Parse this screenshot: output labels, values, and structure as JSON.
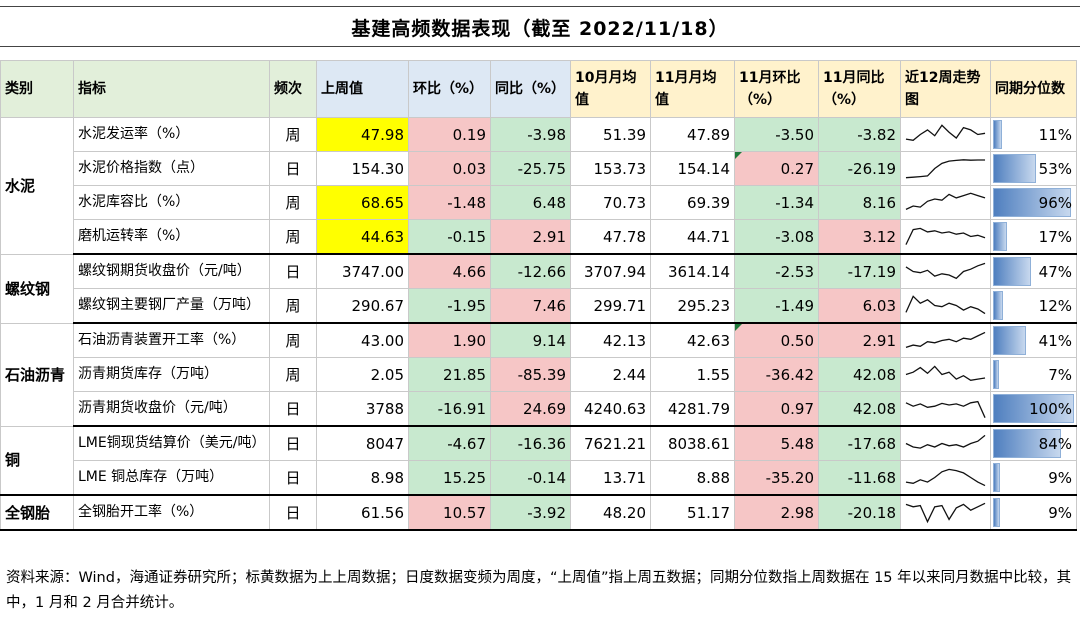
{
  "title": "基建高频数据表现（截至 2022/11/18）",
  "headers": [
    "类别",
    "指标",
    "频次",
    "上周值",
    "环比（%）",
    "同比（%）",
    "10月月均值",
    "11月月均值",
    "11月环比（%）",
    "11月同比（%）",
    "近12周走势图",
    "同期分位数"
  ],
  "rows": [
    {
      "cat": "水泥",
      "ind": "水泥发运率（%）",
      "freq": "周",
      "last": "47.98",
      "mom": "0.19",
      "yoy": "-3.98",
      "oct": "51.39",
      "nov": "47.89",
      "nmom": "-3.50",
      "nyoy": "-3.82",
      "pct": "11%",
      "pct_value": 0.11,
      "spark": [
        0.3,
        0.25,
        0.5,
        0.7,
        0.45,
        0.9,
        0.6,
        0.35,
        0.8,
        0.7,
        0.5,
        0.55
      ]
    },
    {
      "cat": "",
      "ind": "水泥价格指数（点）",
      "freq": "日",
      "last": "154.30",
      "mom": "0.03",
      "yoy": "-25.75",
      "oct": "153.73",
      "nov": "154.14",
      "nmom": "0.27",
      "nyoy": "-26.19",
      "pct": "53%",
      "pct_value": 0.53,
      "spark": [
        0.1,
        0.12,
        0.15,
        0.18,
        0.5,
        0.72,
        0.82,
        0.85,
        0.88,
        0.86,
        0.87,
        0.87
      ]
    },
    {
      "cat": "",
      "ind": "水泥库容比（%）",
      "freq": "周",
      "last": "68.65",
      "mom": "-1.48",
      "yoy": "6.48",
      "oct": "70.73",
      "nov": "69.39",
      "nmom": "-1.34",
      "nyoy": "8.16",
      "pct": "96%",
      "pct_value": 0.96,
      "spark": [
        0.2,
        0.35,
        0.3,
        0.55,
        0.65,
        0.6,
        0.85,
        0.7,
        0.8,
        0.9,
        0.8,
        0.7
      ]
    },
    {
      "cat": "",
      "ind": "磨机运转率（%）",
      "freq": "周",
      "last": "44.63",
      "mom": "-0.15",
      "yoy": "2.91",
      "oct": "47.78",
      "nov": "44.71",
      "nmom": "-3.08",
      "nyoy": "3.12",
      "pct": "17%",
      "pct_value": 0.17,
      "spark": [
        0.15,
        0.8,
        0.85,
        0.7,
        0.75,
        0.65,
        0.7,
        0.6,
        0.65,
        0.5,
        0.55,
        0.45
      ]
    },
    {
      "cat": "螺纹钢",
      "ind": "螺纹钢期货收盘价（元/吨）",
      "freq": "日",
      "last": "3747.00",
      "mom": "4.66",
      "yoy": "-12.66",
      "oct": "3707.94",
      "nov": "3614.14",
      "nmom": "-2.53",
      "nyoy": "-17.19",
      "pct": "47%",
      "pct_value": 0.47,
      "spark": [
        0.7,
        0.5,
        0.45,
        0.55,
        0.3,
        0.4,
        0.35,
        0.2,
        0.5,
        0.6,
        0.75,
        0.85
      ]
    },
    {
      "cat": "",
      "ind": "螺纹钢主要钢厂产量（万吨）",
      "freq": "周",
      "last": "290.67",
      "mom": "-1.95",
      "yoy": "7.46",
      "oct": "299.71",
      "nov": "295.23",
      "nmom": "-1.49",
      "nyoy": "6.03",
      "pct": "12%",
      "pct_value": 0.12,
      "spark": [
        0.2,
        0.9,
        0.6,
        0.75,
        0.5,
        0.45,
        0.6,
        0.5,
        0.3,
        0.45,
        0.35,
        0.15
      ]
    },
    {
      "cat": "石油沥青",
      "ind": "石油沥青装置开工率（%）",
      "freq": "周",
      "last": "43.00",
      "mom": "1.90",
      "yoy": "9.14",
      "oct": "42.13",
      "nov": "42.63",
      "nmom": "0.50",
      "nyoy": "2.91",
      "pct": "41%",
      "pct_value": 0.41,
      "spark": [
        0.2,
        0.3,
        0.25,
        0.45,
        0.4,
        0.5,
        0.55,
        0.45,
        0.6,
        0.55,
        0.7,
        0.85
      ]
    },
    {
      "cat": "",
      "ind": "沥青期货库存（万吨）",
      "freq": "周",
      "last": "2.05",
      "mom": "21.85",
      "yoy": "-85.39",
      "oct": "2.44",
      "nov": "1.55",
      "nmom": "-36.42",
      "nyoy": "42.08",
      "pct": "7%",
      "pct_value": 0.07,
      "spark": [
        0.5,
        0.6,
        0.8,
        0.55,
        0.85,
        0.5,
        0.6,
        0.3,
        0.45,
        0.25,
        0.3,
        0.35
      ]
    },
    {
      "cat": "",
      "ind": "沥青期货收盘价（元/吨）",
      "freq": "日",
      "last": "3788",
      "mom": "-16.91",
      "yoy": "24.69",
      "oct": "4240.63",
      "nov": "4281.79",
      "nmom": "0.97",
      "nyoy": "42.08",
      "pct": "100%",
      "pct_value": 1.0,
      "spark": [
        0.75,
        0.6,
        0.7,
        0.55,
        0.6,
        0.72,
        0.65,
        0.7,
        0.6,
        0.75,
        0.8,
        0.1
      ]
    },
    {
      "cat": "铜",
      "ind": "LME铜现货结算价（美元/吨）",
      "freq": "日",
      "last": "8047",
      "mom": "-4.67",
      "yoy": "-16.36",
      "oct": "7621.21",
      "nov": "8038.61",
      "nmom": "5.48",
      "nyoy": "-17.68",
      "pct": "84%",
      "pct_value": 0.84,
      "spark": [
        0.5,
        0.35,
        0.3,
        0.45,
        0.35,
        0.5,
        0.4,
        0.45,
        0.35,
        0.5,
        0.6,
        0.85
      ]
    },
    {
      "cat": "",
      "ind": "LME 铜总库存（万吨）",
      "freq": "日",
      "last": "8.98",
      "mom": "15.25",
      "yoy": "-0.14",
      "oct": "13.71",
      "nov": "8.88",
      "nmom": "-35.20",
      "nyoy": "-11.68",
      "pct": "9%",
      "pct_value": 0.09,
      "spark": [
        0.3,
        0.25,
        0.4,
        0.3,
        0.5,
        0.75,
        0.85,
        0.8,
        0.7,
        0.5,
        0.3,
        0.15
      ]
    },
    {
      "cat": "全钢胎",
      "ind": "全钢胎开工率（%）",
      "freq": "日",
      "last": "61.56",
      "mom": "10.57",
      "yoy": "-3.92",
      "oct": "48.20",
      "nov": "51.17",
      "nmom": "2.98",
      "nyoy": "-20.18",
      "pct": "9%",
      "pct_value": 0.09,
      "spark": [
        0.85,
        0.75,
        0.8,
        0.1,
        0.75,
        0.8,
        0.2,
        0.7,
        0.85,
        0.6,
        0.75,
        0.9
      ]
    }
  ],
  "highlight_colors": {
    "yellow": "#ffff00",
    "red": "#f6c6c6",
    "green": "#c8e9cf"
  },
  "source": "资料来源：Wind，海通证券研究所；标黄数据为上上周数据；日度数据变频为周度，“上周值”指上周五数据；同期分位数指上周数据在 15 年以来同月数据中比较，其中，1 月和 2 月合并统计。"
}
